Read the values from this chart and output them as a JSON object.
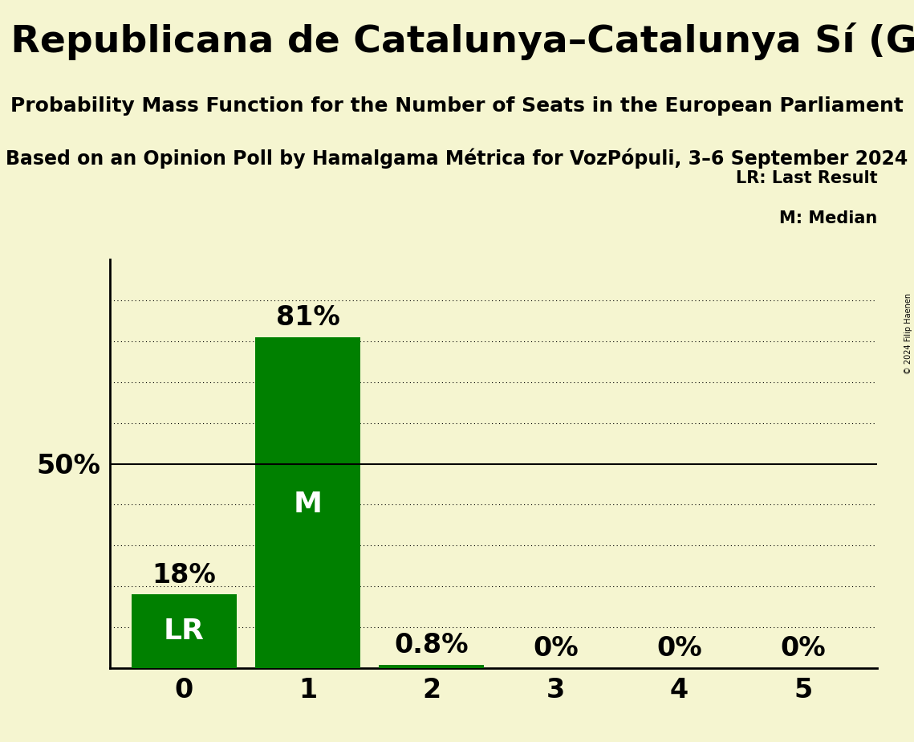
{
  "title": "Esquerra Republicana de Catalunya–Catalunya Sí (Greens/EFA)",
  "subtitle": "Probability Mass Function for the Number of Seats in the European Parliament",
  "subsubtitle": "Based on an Opinion Poll by Hamalgama Métrica for VozPópuli, 3–6 September 2024",
  "seats": [
    0,
    1,
    2,
    3,
    4,
    5
  ],
  "probabilities": [
    18.0,
    81.0,
    0.8,
    0.0,
    0.0,
    0.0
  ],
  "bar_color": "#008000",
  "background_color": "#f5f5d0",
  "last_result_seat": 0,
  "median_seat": 1,
  "lr_label": "LR",
  "median_label": "M",
  "legend_lr": "LR: Last Result",
  "legend_m": "M: Median",
  "ylabel_50": "50%",
  "ylim": [
    0,
    100
  ],
  "yticks_dotted": [
    10,
    20,
    30,
    40,
    60,
    70,
    80,
    90
  ],
  "title_fontsize": 34,
  "subtitle_fontsize": 18,
  "subsubtitle_fontsize": 17,
  "bar_label_fontsize": 24,
  "axis_label_fontsize": 24,
  "inner_label_fontsize": 26,
  "legend_fontsize": 15,
  "copyright_text": "© 2024 Filip Haenen",
  "pct_labels": [
    "18%",
    "81%",
    "0.8%",
    "0%",
    "0%",
    "0%"
  ]
}
